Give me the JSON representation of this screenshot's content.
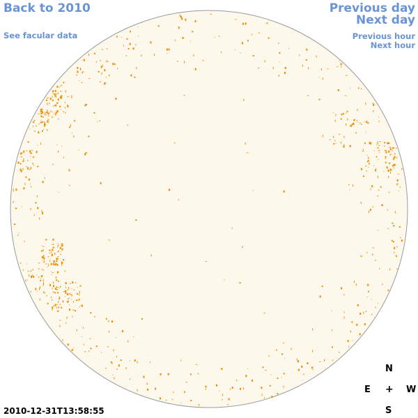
{
  "nav": {
    "back": "Back to 2010",
    "facular": "See facular data",
    "previous_day": "Previous day",
    "next_day": "Next day",
    "previous_hour": "Previous hour",
    "next_hour": "Next hour"
  },
  "compass": {
    "north": "N",
    "south": "S",
    "east": "E",
    "west": "W",
    "center": "+"
  },
  "timestamp": "2010-12-31T13:58:55",
  "colors": {
    "disk_fill": "#fdf8ec",
    "disk_border": "#9a9a9a",
    "speckle": "#f08c00",
    "link": "#6a94d4"
  }
}
